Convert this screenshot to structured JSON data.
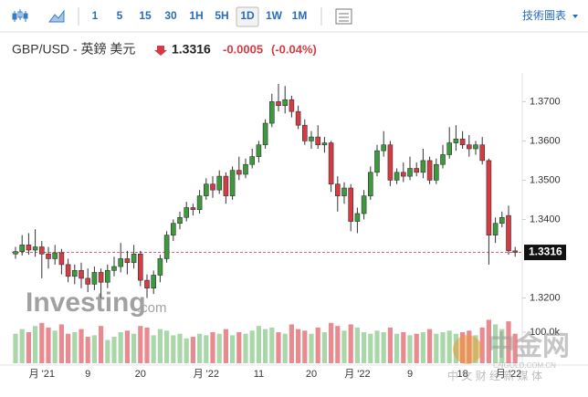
{
  "toolbar": {
    "intervals": [
      "1",
      "5",
      "15",
      "30",
      "1H",
      "5H",
      "1D",
      "1W",
      "1M"
    ],
    "menu": "技術圖表"
  },
  "header": {
    "symbol": "GBP/USD - 英鎊 美元",
    "change": -0.0005,
    "change_percent": "(-0.04%)"
  },
  "watermarks": {
    "brand": "Investing",
    "brand_suffix": ".com",
    "logo": "中金网",
    "logo_url": "CNGOLD.COM.CN",
    "logo_slogan": "中 文 财 经 新 媒 体"
  },
  "chart_data": {
    "type": "candlestick",
    "categories": [
      null,
      null,
      null,
      null,
      "月 '21",
      null,
      null,
      null,
      null,
      null,
      null,
      "9",
      null,
      null,
      null,
      null,
      null,
      null,
      null,
      "20",
      null,
      null,
      null,
      null,
      null,
      null,
      null,
      null,
      null,
      "月 '22",
      null,
      null,
      null,
      null,
      null,
      null,
      null,
      "11",
      null,
      null,
      null,
      null,
      null,
      null,
      null,
      "20",
      null,
      null,
      null,
      null,
      null,
      null,
      "月 '22",
      null,
      null,
      null,
      null,
      null,
      null,
      null,
      "9",
      null,
      null,
      null,
      null,
      null,
      null,
      null,
      "18",
      null,
      null,
      null,
      null,
      null,
      null,
      "月 '22",
      null
    ],
    "open": [
      1.3312,
      1.3318,
      1.3335,
      1.3322,
      1.333,
      1.3312,
      1.33,
      1.3315,
      1.3285,
      1.3255,
      1.327,
      1.325,
      1.3235,
      1.3265,
      1.324,
      1.327,
      1.328,
      1.33,
      1.329,
      1.3312,
      1.3245,
      1.3225,
      1.3258,
      1.33,
      1.336,
      1.339,
      1.3405,
      1.343,
      1.3425,
      1.346,
      1.349,
      1.3475,
      1.351,
      1.346,
      1.3525,
      1.3515,
      1.354,
      1.356,
      1.359,
      1.3645,
      1.37,
      1.369,
      1.3705,
      1.3675,
      1.364,
      1.36,
      1.361,
      1.359,
      1.3595,
      1.349,
      1.346,
      1.348,
      1.3395,
      1.3415,
      1.346,
      1.352,
      1.3575,
      1.359,
      1.35,
      1.352,
      1.351,
      1.353,
      1.352,
      1.355,
      1.35,
      1.354,
      1.3565,
      1.3595,
      1.3605,
      1.359,
      1.358,
      1.359,
      1.355,
      1.336,
      1.339,
      1.341,
      1.332
    ],
    "high": [
      1.333,
      1.336,
      1.3365,
      1.3375,
      1.3345,
      1.333,
      1.3335,
      1.3325,
      1.33,
      1.3285,
      1.329,
      1.3275,
      1.328,
      1.3275,
      1.3285,
      1.3305,
      1.334,
      1.332,
      1.3335,
      1.332,
      1.326,
      1.327,
      1.331,
      1.337,
      1.34,
      1.342,
      1.3445,
      1.344,
      1.3475,
      1.3505,
      1.351,
      1.3525,
      1.352,
      1.3535,
      1.356,
      1.3555,
      1.358,
      1.36,
      1.3655,
      1.372,
      1.3745,
      1.374,
      1.3715,
      1.369,
      1.3655,
      1.3625,
      1.364,
      1.361,
      1.36,
      1.351,
      1.3495,
      1.349,
      1.343,
      1.3475,
      1.3535,
      1.359,
      1.3625,
      1.36,
      1.353,
      1.3545,
      1.356,
      1.3545,
      1.358,
      1.356,
      1.3555,
      1.359,
      1.3635,
      1.364,
      1.3625,
      1.3615,
      1.36,
      1.361,
      1.3555,
      1.3405,
      1.342,
      1.3435,
      1.333
    ],
    "low": [
      1.33,
      1.3308,
      1.331,
      1.3305,
      1.325,
      1.3275,
      1.3285,
      1.326,
      1.324,
      1.3235,
      1.3225,
      1.3215,
      1.322,
      1.32,
      1.3225,
      1.3255,
      1.3265,
      1.326,
      1.3275,
      1.323,
      1.32,
      1.321,
      1.324,
      1.329,
      1.3345,
      1.3375,
      1.3395,
      1.341,
      1.3415,
      1.345,
      1.3455,
      1.3465,
      1.344,
      1.345,
      1.35,
      1.3505,
      1.353,
      1.3545,
      1.358,
      1.3635,
      1.3675,
      1.367,
      1.366,
      1.363,
      1.359,
      1.358,
      1.358,
      1.357,
      1.347,
      1.342,
      1.344,
      1.337,
      1.3365,
      1.34,
      1.345,
      1.351,
      1.356,
      1.3485,
      1.349,
      1.3495,
      1.35,
      1.351,
      1.3505,
      1.349,
      1.349,
      1.353,
      1.3555,
      1.3575,
      1.358,
      1.356,
      1.3565,
      1.354,
      1.3285,
      1.334,
      1.338,
      1.331,
      1.3305
    ],
    "close": [
      1.3318,
      1.3335,
      1.3322,
      1.333,
      1.3312,
      1.33,
      1.3315,
      1.3285,
      1.3255,
      1.327,
      1.325,
      1.3235,
      1.3265,
      1.324,
      1.327,
      1.328,
      1.33,
      1.329,
      1.3312,
      1.3245,
      1.3225,
      1.3258,
      1.33,
      1.336,
      1.339,
      1.3405,
      1.343,
      1.3425,
      1.346,
      1.349,
      1.3475,
      1.351,
      1.346,
      1.3525,
      1.3515,
      1.354,
      1.356,
      1.359,
      1.3645,
      1.37,
      1.369,
      1.3705,
      1.3675,
      1.364,
      1.36,
      1.361,
      1.359,
      1.3595,
      1.349,
      1.346,
      1.348,
      1.3395,
      1.3415,
      1.346,
      1.352,
      1.3575,
      1.359,
      1.35,
      1.352,
      1.351,
      1.353,
      1.352,
      1.355,
      1.35,
      1.354,
      1.3565,
      1.3595,
      1.3605,
      1.359,
      1.358,
      1.359,
      1.355,
      1.336,
      1.339,
      1.3405,
      1.332,
      1.3316
    ],
    "volume": [
      95000,
      110000,
      100000,
      120000,
      130000,
      115000,
      105000,
      125000,
      95000,
      100000,
      110000,
      85000,
      90000,
      120000,
      75000,
      85000,
      100000,
      105000,
      95000,
      120000,
      115000,
      90000,
      110000,
      105000,
      90000,
      95000,
      80000,
      85000,
      95000,
      90000,
      100000,
      95000,
      110000,
      90000,
      100000,
      95000,
      105000,
      120000,
      110000,
      115000,
      100000,
      95000,
      125000,
      110000,
      105000,
      95000,
      115000,
      100000,
      130000,
      120000,
      105000,
      125000,
      115000,
      100000,
      95000,
      105000,
      100000,
      115000,
      95000,
      100000,
      90000,
      95000,
      100000,
      110000,
      95000,
      100000,
      105000,
      95000,
      100000,
      105000,
      90000,
      115000,
      140000,
      125000,
      110000,
      135000,
      95000
    ],
    "last_price": 1.3316,
    "up_color": "#3c9a3c",
    "down_color": "#d63b43",
    "volume_up_color": "#a9d7a9",
    "volume_down_color": "#e98a90",
    "ylim": [
      1.3029,
      1.3773
    ],
    "yticks": [
      {
        "value": 1.32,
        "label": "1.3200"
      },
      {
        "value": 1.34,
        "label": "1.3400"
      },
      {
        "value": 1.35,
        "label": "1.3500"
      },
      {
        "value": 1.36,
        "label": "1.3600"
      },
      {
        "value": 1.37,
        "label": "1.3700"
      }
    ],
    "y2lim": [
      0,
      147000
    ],
    "y2ticks": [
      {
        "value": 100000,
        "label": "100.0k"
      }
    ]
  }
}
